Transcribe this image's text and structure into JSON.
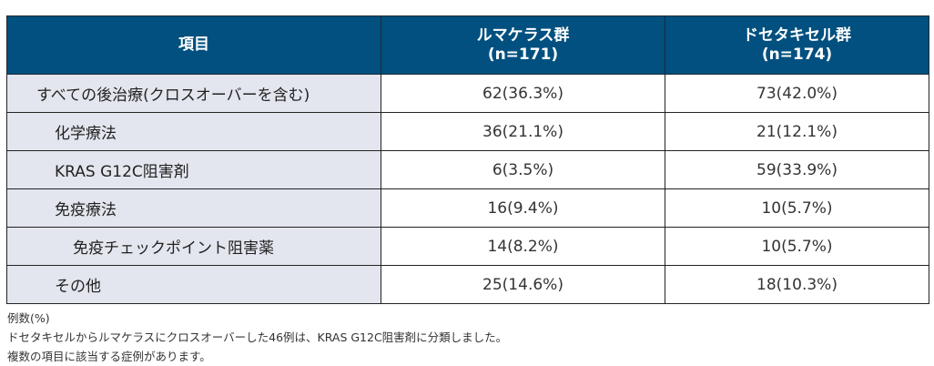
{
  "header": {
    "item": "項目",
    "col1_name": "ルマケラス群",
    "col1_n": "(n=171)",
    "col2_name": "ドセタキセル群",
    "col2_n": "(n=174)"
  },
  "rows": [
    {
      "label": "すべての後治療(クロスオーバーを含む)",
      "level": 0,
      "v1": "62(36.3%)",
      "v2": "73(42.0%)"
    },
    {
      "label": "化学療法",
      "level": 1,
      "v1": "36(21.1%)",
      "v2": "21(12.1%)"
    },
    {
      "label": "KRAS G12C阻害剤",
      "level": 1,
      "v1": "6(3.5%)",
      "v2": "59(33.9%)"
    },
    {
      "label": "免疫療法",
      "level": 1,
      "v1": "16(9.4%)",
      "v2": "10(5.7%)"
    },
    {
      "label": "免疫チェックポイント阻害薬",
      "level": 2,
      "v1": "14(8.2%)",
      "v2": "10(5.7%)"
    },
    {
      "label": "その他",
      "level": 1,
      "v1": "25(14.6%)",
      "v2": "18(10.3%)"
    }
  ],
  "notes": [
    "例数(%)",
    "ドセタキセルからルマケラスにクロスオーバーした46例は、KRAS G12C阻害剤に分類しました。",
    "複数の項目に該当する症例があります。"
  ]
}
